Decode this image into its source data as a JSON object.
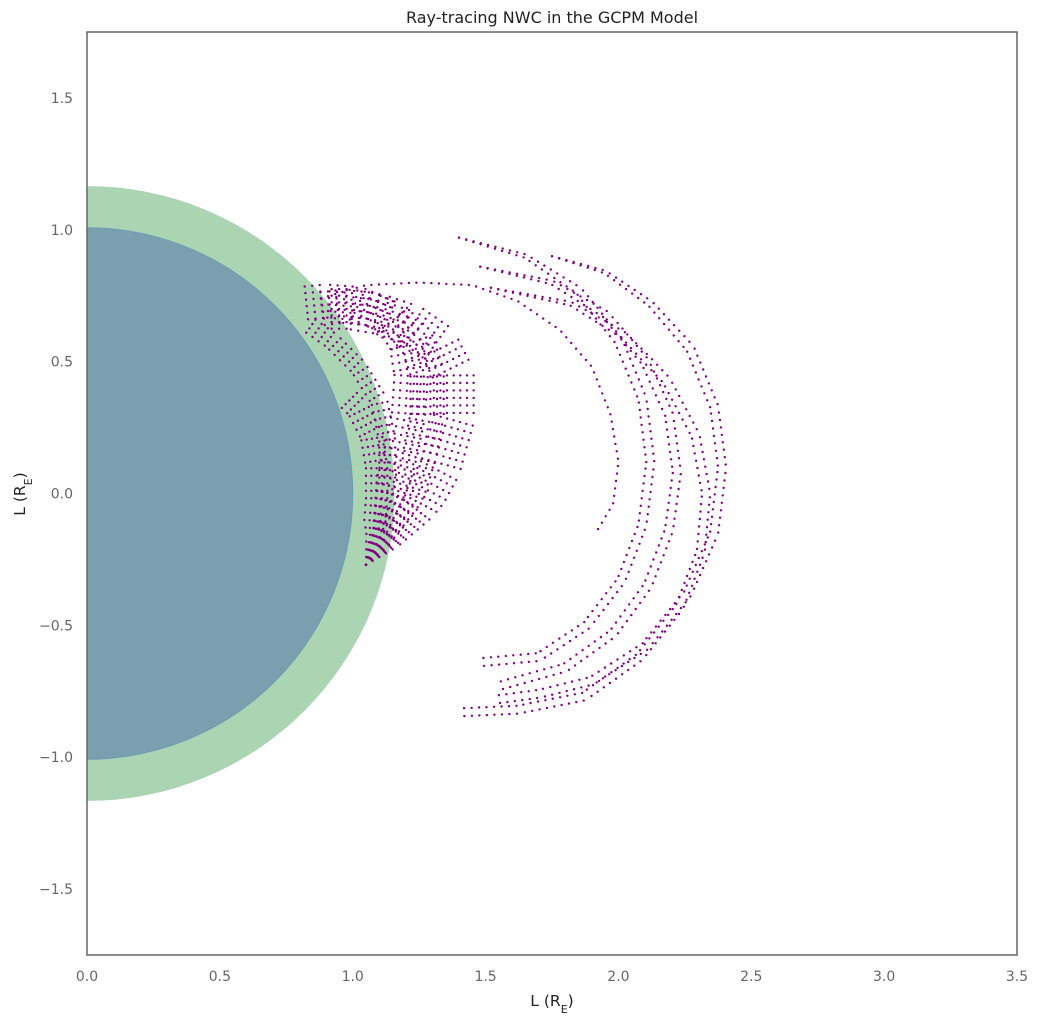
{
  "chart_data": {
    "type": "scatter",
    "title": "Ray-tracing NWC in the GCPM Model",
    "xlabel": "L (R",
    "xlabel_sub": "E",
    "xlabel_end": ")",
    "ylabel": "L (R",
    "ylabel_sub": "E",
    "ylabel_end": ")",
    "xlim": [
      0,
      3.5
    ],
    "ylim": [
      -1.75,
      1.75
    ],
    "xticks": [
      0,
      0.5,
      1,
      1.5,
      2,
      2.5,
      3,
      3.5
    ],
    "xtick_labels": [
      "0.0",
      "0.5",
      "1.0",
      "1.5",
      "2.0",
      "2.5",
      "3.0",
      "3.5"
    ],
    "yticks": [
      -1.5,
      -1,
      -0.5,
      0,
      0.5,
      1,
      1.5
    ],
    "ytick_labels": [
      "−1.5",
      "−1.0",
      "−0.5",
      "0.0",
      "0.5",
      "1.0",
      "1.5"
    ],
    "grid": false,
    "shapes": [
      {
        "kind": "circle",
        "center": [
          0,
          0
        ],
        "radius": 1.157,
        "color": "#a8d3b0"
      },
      {
        "kind": "circle",
        "center": [
          0,
          0
        ],
        "radius": 1.0,
        "color": "#7aa0b0"
      }
    ],
    "series": [
      {
        "color": "#800080",
        "ray_families": [
          {
            "points": [
              [
                1.05,
                -0.27
              ],
              [
                1.1,
                -0.15
              ],
              [
                1.14,
                0.0
              ],
              [
                1.18,
                0.15
              ],
              [
                1.21,
                0.3
              ],
              [
                1.22,
                0.45
              ],
              [
                1.2,
                0.58
              ],
              [
                1.13,
                0.67
              ],
              [
                1.02,
                0.72
              ],
              [
                0.9,
                0.73
              ],
              [
                0.8,
                0.72
              ]
            ],
            "rays": 6,
            "spread": 0.025
          },
          {
            "points": [
              [
                1.05,
                -0.27
              ],
              [
                1.12,
                -0.18
              ],
              [
                1.2,
                -0.02
              ],
              [
                1.25,
                0.14
              ],
              [
                1.28,
                0.3
              ],
              [
                1.28,
                0.46
              ],
              [
                1.24,
                0.58
              ],
              [
                1.16,
                0.66
              ],
              [
                1.06,
                0.7
              ],
              [
                0.96,
                0.71
              ],
              [
                0.88,
                0.7
              ]
            ],
            "rays": 6,
            "spread": 0.025
          },
          {
            "points": [
              [
                1.05,
                -0.27
              ],
              [
                1.15,
                -0.18
              ],
              [
                1.25,
                -0.05
              ],
              [
                1.33,
                0.1
              ],
              [
                1.38,
                0.28
              ],
              [
                1.38,
                0.45
              ],
              [
                1.32,
                0.57
              ],
              [
                1.22,
                0.64
              ],
              [
                1.1,
                0.68
              ],
              [
                0.98,
                0.7
              ],
              [
                0.9,
                0.7
              ]
            ],
            "rays": 7,
            "spread": 0.025
          },
          {
            "points": [
              [
                1.05,
                -0.27
              ],
              [
                1.08,
                -0.15
              ],
              [
                1.09,
                -0.02
              ],
              [
                1.09,
                0.1
              ],
              [
                1.07,
                0.22
              ],
              [
                1.02,
                0.32
              ],
              [
                0.97,
                0.37
              ]
            ],
            "rays": 5,
            "spread": 0.02
          },
          {
            "points": [
              [
                1.05,
                -0.27
              ],
              [
                1.1,
                -0.12
              ],
              [
                1.13,
                0.05
              ],
              [
                1.13,
                0.2
              ],
              [
                1.1,
                0.35
              ],
              [
                1.02,
                0.48
              ],
              [
                0.92,
                0.58
              ],
              [
                0.82,
                0.65
              ]
            ],
            "rays": 4,
            "spread": 0.02
          },
          {
            "points": [
              [
                0.88,
                0.74
              ],
              [
                1.05,
                0.79
              ],
              [
                1.25,
                0.8
              ],
              [
                1.45,
                0.79
              ],
              [
                1.62,
                0.73
              ],
              [
                1.78,
                0.62
              ],
              [
                1.9,
                0.48
              ],
              [
                1.97,
                0.3
              ],
              [
                2.0,
                0.12
              ],
              [
                1.98,
                -0.04
              ],
              [
                1.92,
                -0.14
              ]
            ],
            "rays": 1,
            "spread": 0.0
          },
          {
            "points": [
              [
                1.4,
                0.97
              ],
              [
                1.65,
                0.9
              ],
              [
                1.85,
                0.77
              ],
              [
                2.0,
                0.58
              ],
              [
                2.09,
                0.36
              ],
              [
                2.12,
                0.12
              ],
              [
                2.09,
                -0.12
              ],
              [
                2.01,
                -0.33
              ],
              [
                1.88,
                -0.5
              ],
              [
                1.7,
                -0.62
              ],
              [
                1.48,
                -0.64
              ]
            ],
            "rays": 2,
            "spread": 0.03
          },
          {
            "points": [
              [
                1.48,
                0.86
              ],
              [
                1.75,
                0.8
              ],
              [
                1.95,
                0.68
              ],
              [
                2.1,
                0.5
              ],
              [
                2.19,
                0.3
              ],
              [
                2.22,
                0.08
              ],
              [
                2.19,
                -0.14
              ],
              [
                2.11,
                -0.35
              ],
              [
                1.98,
                -0.53
              ],
              [
                1.8,
                -0.66
              ],
              [
                1.55,
                -0.73
              ]
            ],
            "rays": 2,
            "spread": 0.03
          },
          {
            "points": [
              [
                1.52,
                0.78
              ],
              [
                1.82,
                0.72
              ],
              [
                2.02,
                0.6
              ],
              [
                2.18,
                0.43
              ],
              [
                2.29,
                0.22
              ],
              [
                2.33,
                0.0
              ],
              [
                2.31,
                -0.22
              ],
              [
                2.23,
                -0.43
              ],
              [
                2.08,
                -0.62
              ],
              [
                1.87,
                -0.77
              ],
              [
                1.62,
                -0.82
              ],
              [
                1.4,
                -0.83
              ]
            ],
            "rays": 2,
            "spread": 0.03
          },
          {
            "points": [
              [
                1.75,
                0.9
              ],
              [
                1.95,
                0.84
              ],
              [
                2.12,
                0.72
              ],
              [
                2.27,
                0.55
              ],
              [
                2.36,
                0.33
              ],
              [
                2.39,
                0.1
              ],
              [
                2.36,
                -0.15
              ],
              [
                2.26,
                -0.38
              ],
              [
                2.1,
                -0.58
              ],
              [
                1.9,
                -0.71
              ],
              [
                1.7,
                -0.76
              ],
              [
                1.55,
                -0.78
              ]
            ],
            "rays": 2,
            "spread": 0.03
          }
        ]
      }
    ]
  }
}
